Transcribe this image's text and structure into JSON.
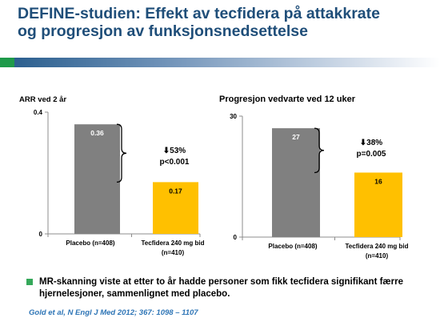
{
  "slide": {
    "title_line1": "DEFINE-studien: Effekt av tecfidera på attakkrate",
    "title_line2": "og progresjon av funksjonsnedsettelse",
    "bullet": "MR-skanning viste at etter to år hadde personer som fikk tecfidera signifikant færre hjernelesjoner, sammenlignet med placebo.",
    "reference": "Gold et al, N Engl J Med 2012; 367: 1098 – 1107",
    "colors": {
      "title": "#1f4e79",
      "placebo": "#808080",
      "tecfidera": "#ffc000",
      "bullet": "#35a85a",
      "reference": "#2e75b6"
    }
  },
  "chart_data": [
    {
      "type": "bar",
      "title": "ARR ved 2 år",
      "categories": [
        "Placebo (n=408)",
        "Tecfidera 240 mg bid (n=410)"
      ],
      "values": [
        0.36,
        0.17
      ],
      "value_labels": [
        "0.36",
        "0.17"
      ],
      "ylim": [
        0,
        0.4
      ],
      "yticks": [
        "0",
        "0.4"
      ],
      "annotation": {
        "arrow": "⬇",
        "line1": "53%",
        "line2": "p<0.001"
      }
    },
    {
      "type": "bar",
      "title": "Progresjon vedvarte ved 12 uker",
      "categories": [
        "Placebo (n=408)",
        "Tecfidera 240 mg bid (n=410)"
      ],
      "values": [
        27,
        16
      ],
      "value_labels": [
        "27",
        "16"
      ],
      "ylim": [
        0,
        30
      ],
      "yticks": [
        "0",
        "30"
      ],
      "annotation": {
        "arrow": "⬇",
        "line1": "38%",
        "line2": "p=0.005"
      }
    }
  ]
}
